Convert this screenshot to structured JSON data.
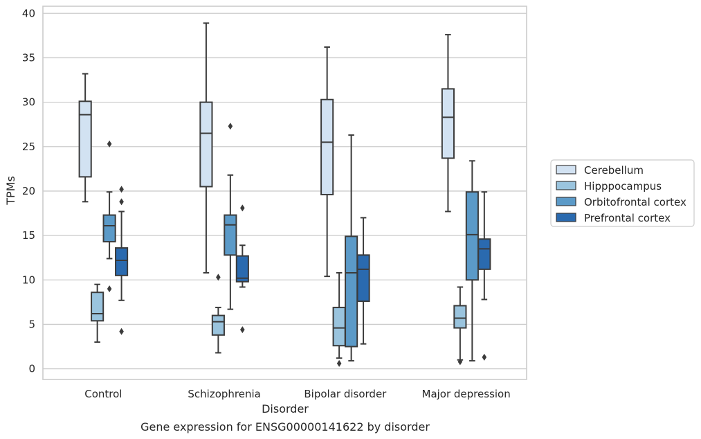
{
  "chart_data": {
    "type": "box",
    "xlabel": "Disorder",
    "ylabel": "TPMs",
    "caption": "Gene expression for ENSG00000141622 by disorder",
    "ylim": [
      -1.2,
      40.8
    ],
    "yticks": [
      0,
      5,
      10,
      15,
      20,
      25,
      30,
      35,
      40
    ],
    "grid": "horizontal",
    "legend_position": "right",
    "categories": [
      "Control",
      "Schizophrenia",
      "Bipolar disorder",
      "Major depression"
    ],
    "series": [
      {
        "name": "Cerebellum",
        "color": "#d2e2f2",
        "boxes": [
          {
            "whisker_low": 18.8,
            "q1": 21.6,
            "median": 28.6,
            "q3": 30.1,
            "whisker_high": 33.2,
            "outliers": []
          },
          {
            "whisker_low": 10.8,
            "q1": 20.5,
            "median": 26.5,
            "q3": 30.0,
            "whisker_high": 38.9,
            "outliers": []
          },
          {
            "whisker_low": 10.4,
            "q1": 19.6,
            "median": 25.5,
            "q3": 30.3,
            "whisker_high": 36.2,
            "outliers": []
          },
          {
            "whisker_low": 17.7,
            "q1": 23.7,
            "median": 28.3,
            "q3": 31.5,
            "whisker_high": 37.6,
            "outliers": []
          }
        ]
      },
      {
        "name": "Hipppocampus",
        "color": "#9ac4de",
        "boxes": [
          {
            "whisker_low": 3.0,
            "q1": 5.4,
            "median": 6.2,
            "q3": 8.6,
            "whisker_high": 9.5,
            "outliers": []
          },
          {
            "whisker_low": 1.8,
            "q1": 3.8,
            "median": 5.3,
            "q3": 6.0,
            "whisker_high": 6.9,
            "outliers": [
              10.3
            ]
          },
          {
            "whisker_low": 1.2,
            "q1": 2.6,
            "median": 4.6,
            "q3": 6.9,
            "whisker_high": 10.8,
            "outliers": [
              0.6
            ]
          },
          {
            "whisker_low": 1.0,
            "q1": 4.6,
            "median": 5.7,
            "q3": 7.1,
            "whisker_high": 9.2,
            "outliers": [
              0.8
            ]
          }
        ]
      },
      {
        "name": "Orbitofrontal cortex",
        "color": "#5b9ac8",
        "boxes": [
          {
            "whisker_low": 12.4,
            "q1": 14.3,
            "median": 16.1,
            "q3": 17.3,
            "whisker_high": 19.9,
            "outliers": [
              25.3,
              9.0
            ]
          },
          {
            "whisker_low": 6.7,
            "q1": 12.8,
            "median": 16.2,
            "q3": 17.3,
            "whisker_high": 21.8,
            "outliers": [
              27.3
            ]
          },
          {
            "whisker_low": 0.9,
            "q1": 2.5,
            "median": 10.8,
            "q3": 14.9,
            "whisker_high": 26.3,
            "outliers": []
          },
          {
            "whisker_low": 0.9,
            "q1": 10.0,
            "median": 15.1,
            "q3": 19.9,
            "whisker_high": 23.4,
            "outliers": []
          }
        ]
      },
      {
        "name": "Prefrontal cortex",
        "color": "#2a6aaf",
        "boxes": [
          {
            "whisker_low": 7.7,
            "q1": 10.5,
            "median": 12.2,
            "q3": 13.6,
            "whisker_high": 17.7,
            "outliers": [
              20.2,
              18.8,
              4.2
            ]
          },
          {
            "whisker_low": 9.2,
            "q1": 9.8,
            "median": 10.2,
            "q3": 12.7,
            "whisker_high": 13.9,
            "outliers": [
              18.1,
              4.4
            ]
          },
          {
            "whisker_low": 2.8,
            "q1": 7.6,
            "median": 11.2,
            "q3": 12.8,
            "whisker_high": 17.0,
            "outliers": []
          },
          {
            "whisker_low": 7.8,
            "q1": 11.2,
            "median": 13.5,
            "q3": 14.6,
            "whisker_high": 19.9,
            "outliers": [
              1.3
            ]
          }
        ]
      }
    ]
  }
}
